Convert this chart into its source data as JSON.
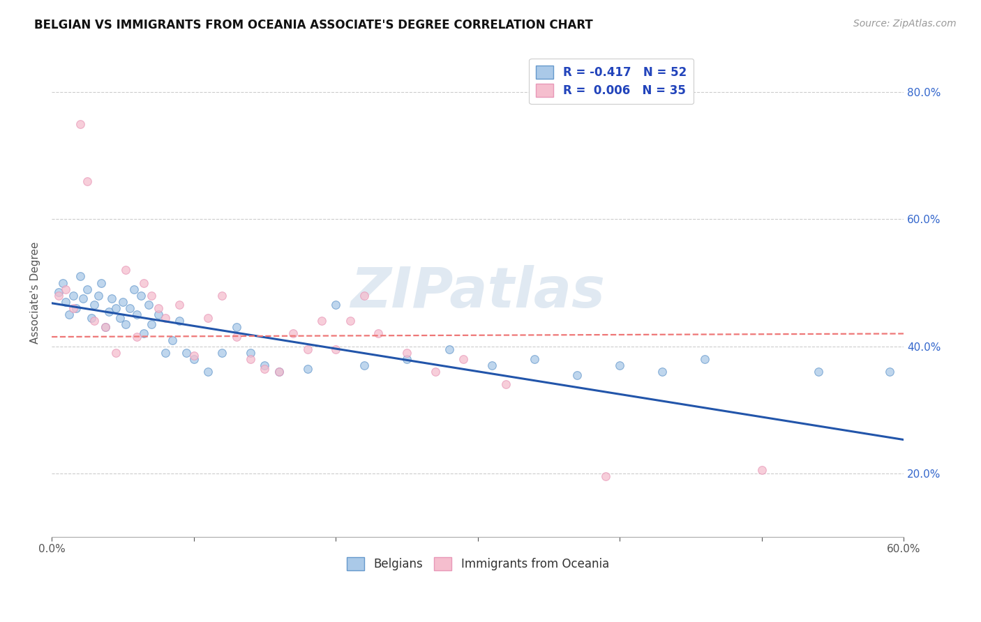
{
  "title": "BELGIAN VS IMMIGRANTS FROM OCEANIA ASSOCIATE'S DEGREE CORRELATION CHART",
  "source": "Source: ZipAtlas.com",
  "ylabel": "Associate's Degree",
  "watermark": "ZIPatlas",
  "legend_r_entries": [
    {
      "label": "R = -0.417   N = 52",
      "facecolor": "#aac9e8",
      "edgecolor": "#7aaac8"
    },
    {
      "label": "R =  0.006   N = 35",
      "facecolor": "#f5bece",
      "edgecolor": "#e898b8"
    }
  ],
  "legend_label_belgians": "Belgians",
  "legend_label_oceania": "Immigrants from Oceania",
  "x_min": 0.0,
  "x_max": 0.6,
  "y_min": 0.1,
  "y_max": 0.87,
  "x_ticks": [
    0.0,
    0.1,
    0.2,
    0.3,
    0.4,
    0.5,
    0.6
  ],
  "x_tick_labels": [
    "0.0%",
    "",
    "",
    "",
    "",
    "",
    "60.0%"
  ],
  "y_ticks": [
    0.2,
    0.4,
    0.6,
    0.8
  ],
  "y_tick_labels": [
    "20.0%",
    "40.0%",
    "60.0%",
    "80.0%"
  ],
  "blue_scatter_x": [
    0.005,
    0.008,
    0.01,
    0.012,
    0.015,
    0.017,
    0.02,
    0.022,
    0.025,
    0.028,
    0.03,
    0.033,
    0.035,
    0.038,
    0.04,
    0.042,
    0.045,
    0.048,
    0.05,
    0.052,
    0.055,
    0.058,
    0.06,
    0.063,
    0.065,
    0.068,
    0.07,
    0.075,
    0.08,
    0.085,
    0.09,
    0.095,
    0.1,
    0.11,
    0.12,
    0.13,
    0.14,
    0.15,
    0.16,
    0.18,
    0.2,
    0.22,
    0.25,
    0.28,
    0.31,
    0.34,
    0.37,
    0.4,
    0.43,
    0.46,
    0.54,
    0.59
  ],
  "blue_scatter_y": [
    0.485,
    0.5,
    0.47,
    0.45,
    0.48,
    0.46,
    0.51,
    0.475,
    0.49,
    0.445,
    0.465,
    0.48,
    0.5,
    0.43,
    0.455,
    0.475,
    0.46,
    0.445,
    0.47,
    0.435,
    0.46,
    0.49,
    0.45,
    0.48,
    0.42,
    0.465,
    0.435,
    0.45,
    0.39,
    0.41,
    0.44,
    0.39,
    0.38,
    0.36,
    0.39,
    0.43,
    0.39,
    0.37,
    0.36,
    0.365,
    0.465,
    0.37,
    0.38,
    0.395,
    0.37,
    0.38,
    0.355,
    0.37,
    0.36,
    0.38,
    0.36,
    0.36
  ],
  "pink_scatter_x": [
    0.005,
    0.01,
    0.015,
    0.02,
    0.025,
    0.03,
    0.038,
    0.045,
    0.052,
    0.06,
    0.065,
    0.07,
    0.075,
    0.08,
    0.09,
    0.1,
    0.11,
    0.12,
    0.13,
    0.14,
    0.15,
    0.16,
    0.17,
    0.18,
    0.19,
    0.2,
    0.21,
    0.22,
    0.23,
    0.25,
    0.27,
    0.29,
    0.32,
    0.39,
    0.5
  ],
  "pink_scatter_y": [
    0.48,
    0.49,
    0.46,
    0.75,
    0.66,
    0.44,
    0.43,
    0.39,
    0.52,
    0.415,
    0.5,
    0.48,
    0.46,
    0.445,
    0.465,
    0.385,
    0.445,
    0.48,
    0.415,
    0.38,
    0.365,
    0.36,
    0.42,
    0.395,
    0.44,
    0.395,
    0.44,
    0.48,
    0.42,
    0.39,
    0.36,
    0.38,
    0.34,
    0.195,
    0.205
  ],
  "blue_line_x": [
    0.0,
    0.6
  ],
  "blue_line_y": [
    0.468,
    0.253
  ],
  "pink_line_x": [
    0.0,
    0.6
  ],
  "pink_line_y": [
    0.415,
    0.42
  ],
  "scatter_size": 70,
  "scatter_alpha": 0.75,
  "scatter_color_blue": "#aac9e8",
  "scatter_color_pink": "#f5bece",
  "scatter_edgecolor_blue": "#6699cc",
  "scatter_edgecolor_pink": "#e898b8",
  "line_color_blue": "#2255aa",
  "line_color_pink": "#ee7777",
  "title_fontsize": 12,
  "axis_label_fontsize": 11,
  "tick_fontsize": 11,
  "source_fontsize": 10,
  "background_color": "#ffffff",
  "grid_color": "#cccccc"
}
